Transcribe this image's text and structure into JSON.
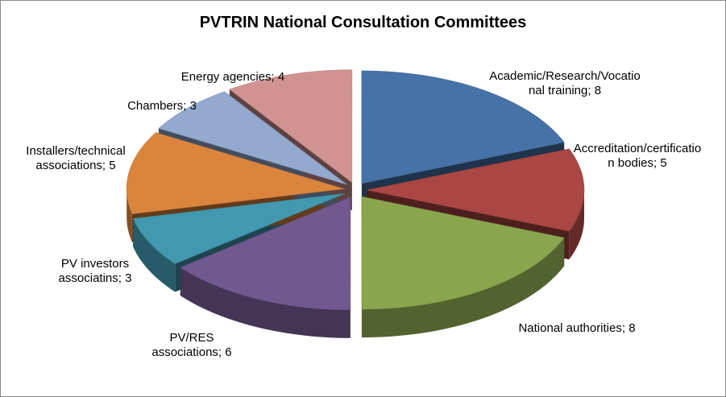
{
  "chart_data": {
    "type": "pie3d",
    "title": "PVTRIN National Consultation Committees",
    "categories": [
      "Academic/Research/Vocational training;",
      "Accreditation/certification bodies;",
      "National authorities;",
      "PV/RES associations;",
      "PV investors associatins;",
      "Installers/technical associations;",
      "Chambers;",
      "Energy agencies;"
    ],
    "values": [
      8,
      5,
      8,
      6,
      3,
      5,
      3,
      4
    ],
    "colors": [
      "#4572A7",
      "#AA4643",
      "#89A54E",
      "#71588F",
      "#4198AF",
      "#DB843D",
      "#93A9CF",
      "#D19392"
    ]
  }
}
